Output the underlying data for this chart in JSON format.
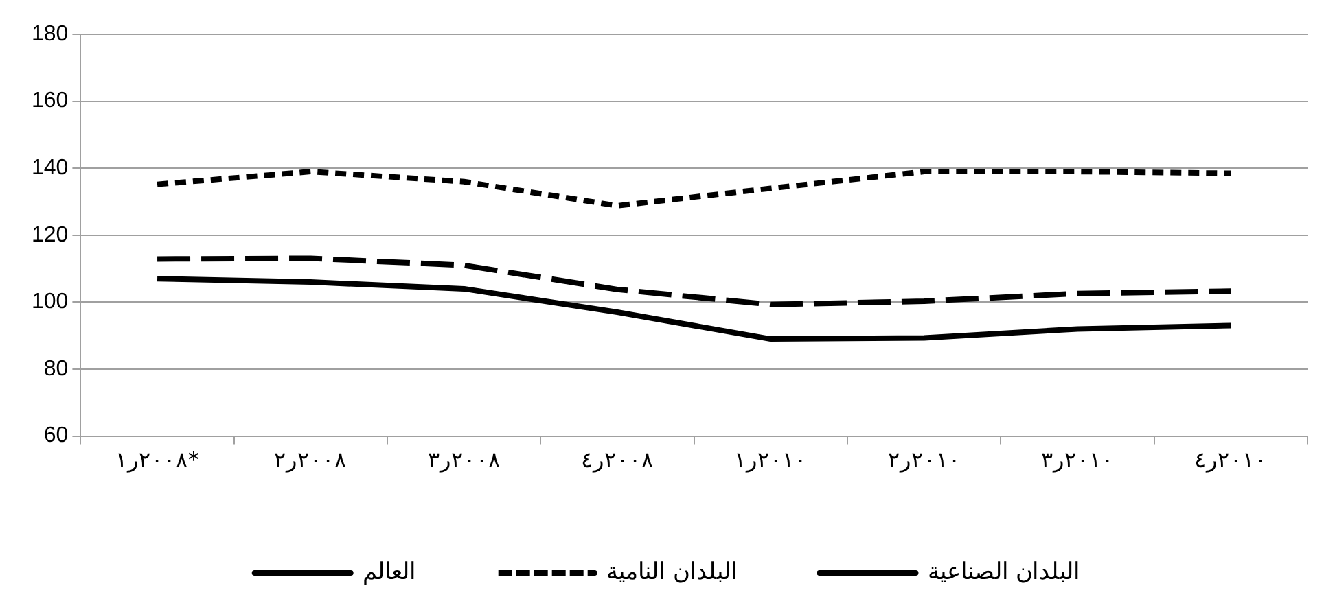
{
  "chart_data": {
    "type": "line",
    "categories": [
      "٢٠٠٨ر١*",
      "٢٠٠٨ر٢",
      "٢٠٠٨ر٣",
      "٢٠٠٨ر٤",
      "٢٠١٠ر١",
      "٢٠١٠ر٢",
      "٢٠١٠ر٣",
      "٢٠١٠ر٤"
    ],
    "series": [
      {
        "name": "العالم",
        "color": "#000000",
        "line_style": "dashed",
        "values": [
          112.9,
          113.1,
          111,
          103.8,
          99.3,
          100.3,
          102.6,
          103.3
        ]
      },
      {
        "name": "البلدان النامية",
        "color": "#000000",
        "line_style": "dotted",
        "values": [
          135.2,
          139,
          136,
          128.8,
          134,
          139,
          139,
          138.5
        ]
      },
      {
        "name": "البلدان الصناعية",
        "color": "#000000",
        "line_style": "solid",
        "values": [
          107,
          106,
          104,
          97,
          89,
          89.3,
          92,
          93
        ]
      }
    ],
    "ylim": [
      60,
      180
    ],
    "yticks": [
      60,
      80,
      100,
      120,
      140,
      160,
      180
    ],
    "grid": "y",
    "legend": "bottom",
    "marker": "none"
  }
}
